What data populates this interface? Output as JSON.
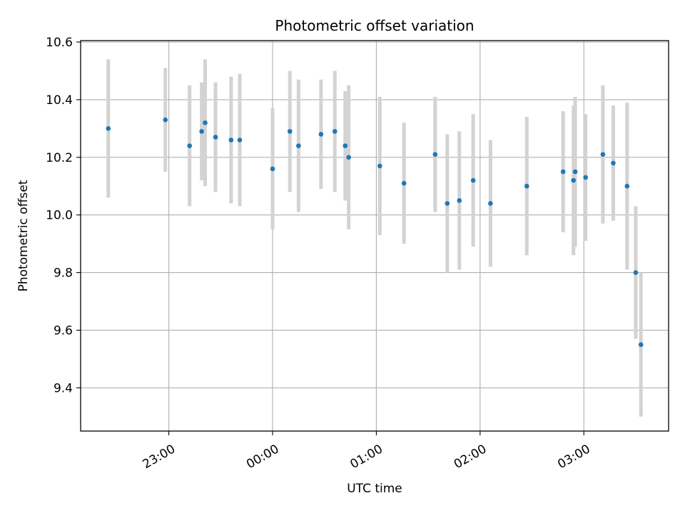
{
  "chart_data": {
    "type": "scatter",
    "title": "Photometric offset variation",
    "xlabel": "UTC time",
    "ylabel": "Photometric offset",
    "x_tick_labels": [
      "23:00",
      "00:00",
      "01:00",
      "02:00",
      "03:00"
    ],
    "x_ticks": [
      "23:00",
      "00:00",
      "01:00",
      "02:00",
      "03:00"
    ],
    "x_unit": "UTC time of day (HH:MM)",
    "y_ticks": [
      9.4,
      9.6,
      9.8,
      10.0,
      10.2,
      10.4,
      10.6
    ],
    "y_tick_labels": [
      "9.4",
      "9.6",
      "9.8",
      "10.0",
      "10.2",
      "10.4",
      "10.6"
    ],
    "ylim": [
      9.25,
      10.605
    ],
    "xlim": [
      "22:09",
      "03:49"
    ],
    "grid": true,
    "series": [
      {
        "marker_color": "#1f77b4",
        "errorbar_color": "#d3d3d3",
        "points": [
          {
            "x": "22:25",
            "y": 10.3,
            "err": 0.24
          },
          {
            "x": "22:58",
            "y": 10.33,
            "err": 0.18
          },
          {
            "x": "23:12",
            "y": 10.24,
            "err": 0.21
          },
          {
            "x": "23:19",
            "y": 10.29,
            "err": 0.17
          },
          {
            "x": "23:21",
            "y": 10.32,
            "err": 0.22
          },
          {
            "x": "23:27",
            "y": 10.27,
            "err": 0.19
          },
          {
            "x": "23:36",
            "y": 10.26,
            "err": 0.22
          },
          {
            "x": "23:41",
            "y": 10.26,
            "err": 0.23
          },
          {
            "x": "24:00",
            "y": 10.16,
            "err": 0.21
          },
          {
            "x": "24:10",
            "y": 10.29,
            "err": 0.21
          },
          {
            "x": "24:15",
            "y": 10.24,
            "err": 0.23
          },
          {
            "x": "24:28",
            "y": 10.28,
            "err": 0.19
          },
          {
            "x": "24:36",
            "y": 10.29,
            "err": 0.21
          },
          {
            "x": "24:42",
            "y": 10.24,
            "err": 0.19
          },
          {
            "x": "24:44",
            "y": 10.2,
            "err": 0.25
          },
          {
            "x": "25:02",
            "y": 10.17,
            "err": 0.24
          },
          {
            "x": "25:16",
            "y": 10.11,
            "err": 0.21
          },
          {
            "x": "25:34",
            "y": 10.21,
            "err": 0.2
          },
          {
            "x": "25:41",
            "y": 10.04,
            "err": 0.24
          },
          {
            "x": "25:48",
            "y": 10.05,
            "err": 0.24
          },
          {
            "x": "25:56",
            "y": 10.12,
            "err": 0.23
          },
          {
            "x": "26:06",
            "y": 10.04,
            "err": 0.22
          },
          {
            "x": "26:27",
            "y": 10.1,
            "err": 0.24
          },
          {
            "x": "26:48",
            "y": 10.15,
            "err": 0.21
          },
          {
            "x": "26:54",
            "y": 10.12,
            "err": 0.26
          },
          {
            "x": "26:55",
            "y": 10.15,
            "err": 0.26
          },
          {
            "x": "27:01",
            "y": 10.13,
            "err": 0.22
          },
          {
            "x": "27:11",
            "y": 10.21,
            "err": 0.24
          },
          {
            "x": "27:17",
            "y": 10.18,
            "err": 0.2
          },
          {
            "x": "27:25",
            "y": 10.1,
            "err": 0.29
          },
          {
            "x": "27:30",
            "y": 9.8,
            "err": 0.23
          },
          {
            "x": "27:33",
            "y": 9.55,
            "err": 0.25
          }
        ]
      }
    ]
  }
}
